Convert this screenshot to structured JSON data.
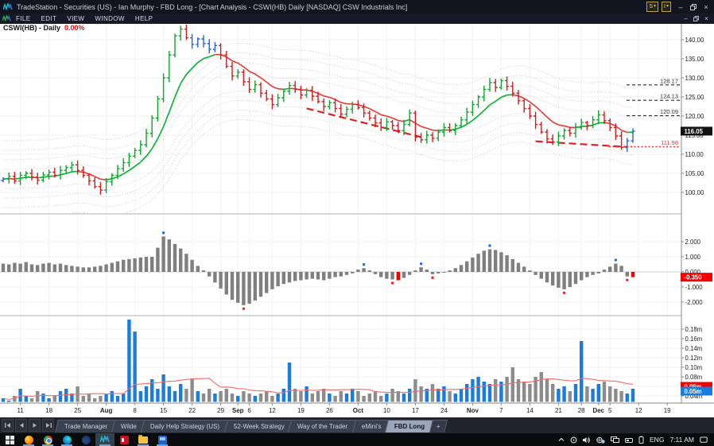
{
  "window": {
    "title": "TradeStation - Securities (US) - Ian Murphy - FBD Long - [Chart Analysis - CSWI(HB) Daily [NASDAQ] CSW Industrials Inc]",
    "quick_access": [
      {
        "label": "S"
      },
      {
        "label": "I"
      }
    ],
    "controls": {
      "minimize": "–",
      "close": "×"
    }
  },
  "menu_bar": {
    "items": [
      "FILE",
      "EDIT",
      "VIEW",
      "WINDOW",
      "HELP"
    ]
  },
  "chart_header": {
    "symbol": "CSWI(HB) - Daily",
    "change": "0.00%"
  },
  "chart_data": {
    "type": "ohlc",
    "symbol": "CSWI(HB)",
    "interval": "Daily",
    "exchange": "NASDAQ",
    "company": "CSW Industrials Inc",
    "bar_spacing": 7.2,
    "colors": {
      "up_bar": "#0fa52f",
      "down_bar": "#cf1d1d",
      "neutral_bar": "#2563cf",
      "ma_up": "#00b32c",
      "ma_down": "#e53935",
      "band": "#cfcfcf",
      "hist_bar": "#7f7f7f",
      "hist_red": "#f50000",
      "dot_blue": "#1e6fe0",
      "dot_red": "#ff2020",
      "vol_up": "#1b7ce0",
      "vol_down": "#8c8c8c",
      "vol_ma": "#f26a6a",
      "level_black": "#2b2b2b",
      "level_red": "#ff2a2a",
      "trendline": "#e02020"
    },
    "price_axis": {
      "ticks": [
        {
          "label": "140.00",
          "value": 140
        },
        {
          "label": "135.00",
          "value": 135
        },
        {
          "label": "130.00",
          "value": 130
        },
        {
          "label": "125.00",
          "value": 125
        },
        {
          "label": "120.00",
          "value": 120
        },
        {
          "label": "115.00",
          "value": 115
        },
        {
          "label": "110.00",
          "value": 110
        },
        {
          "label": "105.00",
          "value": 105
        },
        {
          "label": "100.00",
          "value": 100
        }
      ],
      "badge": {
        "label": "116.05",
        "value": 116.05,
        "bg": "#111111",
        "fg": "#ffffff"
      }
    },
    "indicator_axis": {
      "ticks": [
        {
          "label": "2.000",
          "value": 2
        },
        {
          "label": "1.000",
          "value": 1
        },
        {
          "label": "0.000",
          "value": 0
        },
        {
          "label": "-1.000",
          "value": -1
        },
        {
          "label": "-2.000",
          "value": -2
        }
      ],
      "badge": {
        "label": "-0.350",
        "value": -0.35,
        "bg": "#f50000",
        "fg": "#ffffff"
      }
    },
    "volume_axis": {
      "ticks": [
        {
          "label": "0.18m",
          "value": 0.18
        },
        {
          "label": "0.16m",
          "value": 0.16
        },
        {
          "label": "0.14m",
          "value": 0.14
        },
        {
          "label": "0.12m",
          "value": 0.12
        },
        {
          "label": "0.10m",
          "value": 0.1
        },
        {
          "label": "0.08m",
          "value": 0.08
        },
        {
          "label": "0.06m",
          "value": 0.06
        },
        {
          "label": "0.04m",
          "value": 0.04
        }
      ],
      "badges": [
        {
          "label": "0.06m",
          "value": 0.06,
          "bg": "#f50000",
          "fg": "#ffffff"
        },
        {
          "label": "0.05m",
          "value": 0.05,
          "bg": "#1b7ce0",
          "fg": "#ffffff"
        }
      ]
    },
    "levels": [
      {
        "label": "128.17",
        "value": 128.17,
        "style": "dash",
        "color": "#2b2b2b"
      },
      {
        "label": "124.13",
        "value": 124.13,
        "style": "dash",
        "color": "#2b2b2b"
      },
      {
        "label": "120.09",
        "value": 120.09,
        "style": "dash",
        "color": "#2b2b2b"
      },
      {
        "label": "111.98",
        "value": 111.98,
        "style": "dot",
        "color": "#ff2a2a"
      }
    ],
    "trendlines": [
      {
        "from": [
          53,
          122.0
        ],
        "to": [
          73,
          114.5
        ]
      },
      {
        "from": [
          93,
          113.4
        ],
        "to": [
          109,
          111.9
        ]
      }
    ],
    "x_ticks": [
      {
        "label": "11",
        "i": 3
      },
      {
        "label": "18",
        "i": 8
      },
      {
        "label": "25",
        "i": 13
      },
      {
        "label": "Aug",
        "i": 18,
        "bold": true
      },
      {
        "label": "8",
        "i": 23
      },
      {
        "label": "15",
        "i": 28
      },
      {
        "label": "22",
        "i": 33
      },
      {
        "label": "29",
        "i": 38
      },
      {
        "label": "Sep",
        "i": 41,
        "bold": true
      },
      {
        "label": "6",
        "i": 43
      },
      {
        "label": "12",
        "i": 47
      },
      {
        "label": "19",
        "i": 52
      },
      {
        "label": "26",
        "i": 57
      },
      {
        "label": "Oct",
        "i": 62,
        "bold": true
      },
      {
        "label": "10",
        "i": 67
      },
      {
        "label": "17",
        "i": 72
      },
      {
        "label": "24",
        "i": 77
      },
      {
        "label": "Nov",
        "i": 82,
        "bold": true
      },
      {
        "label": "7",
        "i": 87
      },
      {
        "label": "14",
        "i": 92
      },
      {
        "label": "21",
        "i": 97
      },
      {
        "label": "28",
        "i": 101
      },
      {
        "label": "Dec",
        "i": 104,
        "bold": true
      },
      {
        "label": "5",
        "i": 106
      },
      {
        "label": "12",
        "i": 111
      },
      {
        "label": "19",
        "i": 116
      }
    ],
    "closes": [
      103.5,
      104.2,
      103.0,
      104.5,
      105.0,
      104.0,
      103.2,
      104.6,
      105.3,
      104.5,
      105.8,
      106.5,
      107.2,
      105.8,
      104.5,
      103.0,
      101.5,
      100.6,
      102.8,
      104.5,
      106.2,
      107.8,
      109.5,
      111.0,
      112.5,
      115.5,
      119.5,
      124.5,
      130.0,
      136.0,
      141.0,
      142.8,
      140.5,
      138.8,
      140.2,
      139.0,
      137.5,
      138.5,
      136.0,
      133.0,
      130.5,
      131.5,
      129.0,
      127.0,
      128.2,
      126.0,
      124.5,
      123.0,
      124.8,
      126.5,
      128.0,
      127.0,
      125.5,
      126.8,
      125.2,
      123.8,
      122.5,
      123.5,
      122.0,
      120.5,
      121.8,
      123.0,
      122.2,
      120.8,
      119.5,
      118.2,
      117.0,
      118.5,
      117.5,
      116.2,
      117.8,
      120.8,
      114.5,
      113.8,
      115.0,
      114.2,
      115.8,
      117.0,
      116.2,
      117.5,
      119.0,
      121.0,
      123.0,
      125.0,
      127.0,
      128.8,
      127.5,
      129.3,
      127.8,
      126.0,
      124.0,
      122.0,
      120.0,
      117.8,
      115.8,
      114.0,
      113.2,
      114.8,
      116.2,
      115.5,
      117.0,
      118.3,
      117.5,
      119.0,
      120.3,
      118.8,
      117.0,
      114.8,
      111.8,
      113.5,
      116.05
    ],
    "bar_color_overrides": {
      "33": "b",
      "34": "b",
      "35": "b",
      "36": "b",
      "37": "b",
      "109": "b",
      "110": "b"
    },
    "histogram": [
      0.55,
      0.5,
      0.6,
      0.55,
      0.65,
      0.5,
      0.45,
      0.55,
      0.6,
      0.5,
      0.55,
      0.45,
      0.4,
      0.35,
      0.3,
      0.3,
      0.35,
      0.4,
      0.5,
      0.6,
      0.7,
      0.8,
      0.85,
      0.9,
      0.95,
      1.0,
      1.0,
      1.6,
      2.35,
      2.15,
      1.85,
      1.55,
      1.2,
      0.8,
      0.4,
      0.1,
      -0.3,
      -0.7,
      -1.1,
      -1.5,
      -1.85,
      -2.05,
      -2.2,
      -2.1,
      -1.9,
      -1.65,
      -1.4,
      -1.15,
      -0.95,
      -0.8,
      -0.7,
      -0.6,
      -0.55,
      -0.5,
      -0.45,
      -0.5,
      -0.55,
      -0.45,
      -0.35,
      -0.3,
      -0.2,
      -0.1,
      0.15,
      0.25,
      0.1,
      -0.15,
      -0.35,
      -0.45,
      -0.5,
      -0.55,
      -0.4,
      -0.2,
      0.1,
      0.3,
      0.15,
      -0.15,
      -0.1,
      -0.05,
      0.1,
      0.25,
      0.45,
      0.7,
      0.95,
      1.2,
      1.4,
      1.5,
      1.45,
      1.3,
      1.1,
      0.85,
      0.6,
      0.35,
      0.1,
      -0.2,
      -0.45,
      -0.7,
      -0.9,
      -1.05,
      -1.15,
      -1.0,
      -0.8,
      -0.55,
      -0.35,
      -0.2,
      -0.1,
      0.15,
      0.35,
      0.55,
      0.4,
      -0.3,
      -0.35
    ],
    "hist_red_bars": [
      69,
      110
    ],
    "hist_blue_dots": [
      28,
      63,
      73,
      85,
      107
    ],
    "hist_red_dots": [
      42,
      68,
      75,
      98,
      109
    ],
    "volumes": [
      0.035,
      0.03,
      0.04,
      0.055,
      0.04,
      0.035,
      0.05,
      0.045,
      0.035,
      0.04,
      0.05,
      0.055,
      0.045,
      0.06,
      0.04,
      0.045,
      0.035,
      0.04,
      0.045,
      0.05,
      0.04,
      0.045,
      0.2,
      0.175,
      0.05,
      0.06,
      0.075,
      0.055,
      0.085,
      0.06,
      0.05,
      0.065,
      0.055,
      0.075,
      0.05,
      0.045,
      0.055,
      0.045,
      0.05,
      0.055,
      0.045,
      0.04,
      0.05,
      0.045,
      0.04,
      0.045,
      0.05,
      0.04,
      0.045,
      0.055,
      0.11,
      0.055,
      0.05,
      0.06,
      0.045,
      0.05,
      0.055,
      0.045,
      0.04,
      0.05,
      0.045,
      0.055,
      0.05,
      0.04,
      0.045,
      0.05,
      0.04,
      0.045,
      0.055,
      0.05,
      0.045,
      0.055,
      0.075,
      0.06,
      0.055,
      0.065,
      0.055,
      0.06,
      0.05,
      0.045,
      0.055,
      0.065,
      0.075,
      0.08,
      0.07,
      0.065,
      0.075,
      0.07,
      0.08,
      0.1,
      0.075,
      0.07,
      0.065,
      0.08,
      0.09,
      0.075,
      0.065,
      0.055,
      0.06,
      0.05,
      0.065,
      0.155,
      0.06,
      0.055,
      0.065,
      0.07,
      0.06,
      0.055,
      0.05,
      0.045,
      0.055
    ]
  },
  "workspace_tabs": {
    "tabs": [
      "Trade Manager",
      "Wilde",
      "Daily Help Strategy (US)",
      "52-Week Strategy",
      "Way of the Trader",
      "eMini's",
      "FBD Long"
    ],
    "active_tab": "FBD Long",
    "add_label": "+"
  },
  "taskbar": {
    "apps": [
      "start",
      "firefox",
      "chrome",
      "edge",
      "wave-app",
      "tradestation",
      "red-app",
      "file-explorer",
      "blue-app"
    ],
    "tray": {
      "language": "ENG",
      "time": "7:11 AM"
    }
  }
}
